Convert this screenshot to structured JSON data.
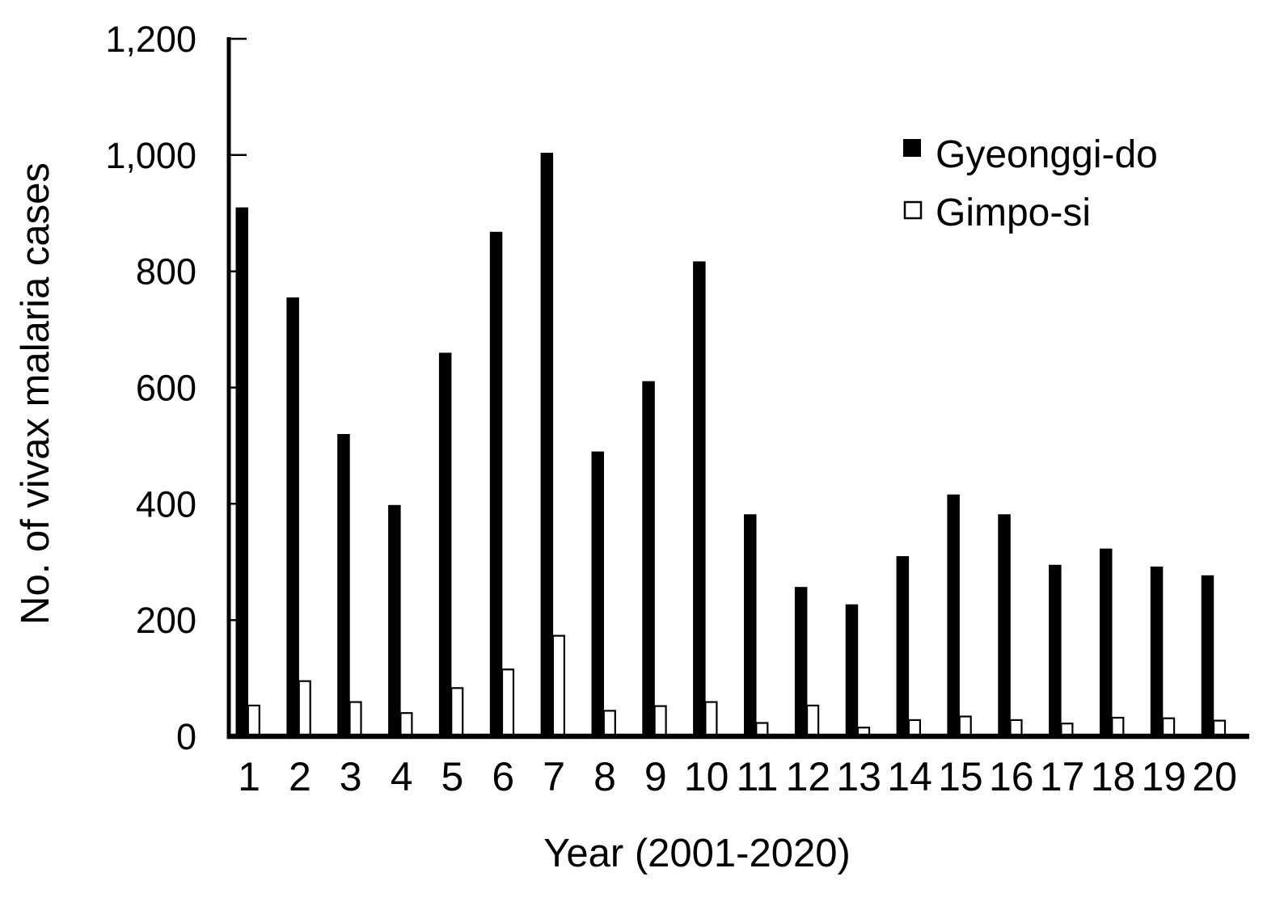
{
  "figure": {
    "background": "#ffffff",
    "foreground": "#000000"
  },
  "chart_data": {
    "type": "bar",
    "title": "",
    "xlabel": "Year (2001-2020)",
    "ylabel": "No. of vivax malaria cases",
    "categories": [
      "1",
      "2",
      "3",
      "4",
      "5",
      "6",
      "7",
      "8",
      "9",
      "10",
      "11",
      "12",
      "13",
      "14",
      "15",
      "16",
      "17",
      "18",
      "19",
      "20"
    ],
    "series": [
      {
        "name": "Gyeonggi-do",
        "swatch": "filled-black-square",
        "fill": "#000000",
        "stroke": "#000000",
        "values": [
          910,
          755,
          520,
          398,
          660,
          868,
          1004,
          490,
          611,
          817,
          382,
          257,
          227,
          310,
          416,
          382,
          295,
          323,
          292,
          277
        ]
      },
      {
        "name": "Gimpo-si",
        "swatch": "open-white-square",
        "fill": "#ffffff",
        "stroke": "#000000",
        "values": [
          53,
          95,
          59,
          40,
          83,
          115,
          173,
          44,
          52,
          59,
          23,
          53,
          15,
          28,
          34,
          28,
          22,
          32,
          31,
          27
        ]
      }
    ],
    "ylim": [
      0,
      1200
    ],
    "ytick_values": [
      0,
      200,
      400,
      600,
      800,
      1000,
      1200
    ],
    "yticks": [
      "0",
      "200",
      "400",
      "600",
      "800",
      "1,000",
      "1,200"
    ],
    "grid": false,
    "legend_position": "top-right"
  }
}
